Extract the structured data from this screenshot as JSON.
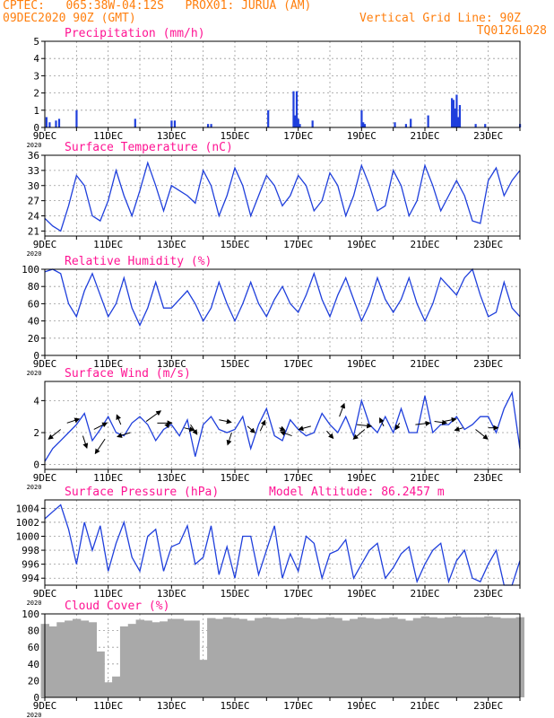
{
  "header": {
    "line1_left": "CPTEC:   065:38W-04:12S   PROX01: JURUA (AM)",
    "line2_left": "09DEC2020 90Z (GMT)",
    "line2_right": "Vertical Grid Line: 90Z",
    "line3_right": "TQ0126L028"
  },
  "colors": {
    "header": "#ff7f0e",
    "panel_title": "#ff1493",
    "series": "#1f3fdc",
    "cloud": "#a9a9a9",
    "arrows": "#000000",
    "grid": "#9a9a9a"
  },
  "x_axis": {
    "tick_labels": [
      "9DEC",
      "11DEC",
      "13DEC",
      "15DEC",
      "17DEC",
      "19DEC",
      "21DEC",
      "23DEC"
    ],
    "sub_label": "2020",
    "day_range": [
      9,
      24
    ]
  },
  "chart_data": [
    {
      "type": "bar",
      "title": "Precipitation (mm/h)",
      "ylim": [
        0,
        5
      ],
      "yticks": [
        0,
        1,
        2,
        3,
        4,
        5
      ],
      "x": [
        9.05,
        9.15,
        9.35,
        9.45,
        10.0,
        11.85,
        13.0,
        13.1,
        14.15,
        14.25,
        16.05,
        16.85,
        16.9,
        16.95,
        17.0,
        17.05,
        17.45,
        19.0,
        19.05,
        19.1,
        20.05,
        20.4,
        20.55,
        21.1,
        21.85,
        21.9,
        21.95,
        22.0,
        22.05,
        22.1,
        22.6,
        22.9,
        24.0
      ],
      "values": [
        0.6,
        0.3,
        0.4,
        0.5,
        1.0,
        0.5,
        0.4,
        0.4,
        0.2,
        0.2,
        1.0,
        2.1,
        0.7,
        2.1,
        0.5,
        0.2,
        0.4,
        1.0,
        0.3,
        0.2,
        0.3,
        0.2,
        0.5,
        0.7,
        1.7,
        1.6,
        1.1,
        1.9,
        0.6,
        1.3,
        0.2,
        0.2,
        0.2
      ]
    },
    {
      "type": "line",
      "title": "Surface Temperature (nC)",
      "ylim": [
        20,
        36
      ],
      "yticks": [
        21,
        24,
        27,
        30,
        33,
        36
      ],
      "x": [
        9.0,
        9.25,
        9.5,
        9.75,
        10.0,
        10.25,
        10.5,
        10.75,
        11.0,
        11.25,
        11.5,
        11.75,
        12.0,
        12.25,
        12.5,
        12.75,
        13.0,
        13.25,
        13.5,
        13.75,
        14.0,
        14.25,
        14.5,
        14.75,
        15.0,
        15.25,
        15.5,
        15.75,
        16.0,
        16.25,
        16.5,
        16.75,
        17.0,
        17.25,
        17.5,
        17.75,
        18.0,
        18.25,
        18.5,
        18.75,
        19.0,
        19.25,
        19.5,
        19.75,
        20.0,
        20.25,
        20.5,
        20.75,
        21.0,
        21.25,
        21.5,
        21.75,
        22.0,
        22.25,
        22.5,
        22.75,
        23.0,
        23.25,
        23.5,
        23.75,
        24.0
      ],
      "values": [
        23.5,
        22.0,
        21.0,
        26.0,
        32.0,
        30.0,
        24.0,
        23.0,
        27.0,
        33.0,
        28.0,
        24.0,
        29.0,
        34.5,
        30.0,
        25.0,
        30.0,
        29.0,
        28.0,
        26.5,
        33.0,
        30.0,
        24.0,
        28.0,
        33.5,
        30.0,
        24.0,
        28.0,
        32.0,
        30.0,
        26.0,
        28.0,
        32.0,
        30.0,
        25.0,
        27.0,
        32.5,
        30.0,
        24.0,
        28.0,
        34.0,
        30.0,
        25.0,
        26.0,
        33.0,
        30.0,
        24.0,
        27.0,
        34.0,
        30.0,
        25.0,
        28.0,
        31.0,
        28.0,
        23.0,
        22.5,
        31.0,
        33.5,
        28.0,
        31.0,
        33.0
      ]
    },
    {
      "type": "line",
      "title": "Relative Humidity (%)",
      "ylim": [
        0,
        100
      ],
      "yticks": [
        0,
        20,
        40,
        60,
        80,
        100
      ],
      "x": [
        9.0,
        9.25,
        9.5,
        9.75,
        10.0,
        10.25,
        10.5,
        10.75,
        11.0,
        11.25,
        11.5,
        11.75,
        12.0,
        12.25,
        12.5,
        12.75,
        13.0,
        13.25,
        13.5,
        13.75,
        14.0,
        14.25,
        14.5,
        14.75,
        15.0,
        15.25,
        15.5,
        15.75,
        16.0,
        16.25,
        16.5,
        16.75,
        17.0,
        17.25,
        17.5,
        17.75,
        18.0,
        18.25,
        18.5,
        18.75,
        19.0,
        19.25,
        19.5,
        19.75,
        20.0,
        20.25,
        20.5,
        20.75,
        21.0,
        21.25,
        21.5,
        21.75,
        22.0,
        22.25,
        22.5,
        22.75,
        23.0,
        23.25,
        23.5,
        23.75,
        24.0
      ],
      "values": [
        97,
        100,
        95,
        60,
        45,
        75,
        95,
        70,
        45,
        60,
        90,
        55,
        35,
        55,
        85,
        55,
        55,
        65,
        75,
        60,
        40,
        55,
        85,
        60,
        40,
        60,
        85,
        60,
        45,
        65,
        80,
        60,
        50,
        70,
        95,
        65,
        45,
        70,
        90,
        65,
        40,
        60,
        90,
        65,
        50,
        65,
        90,
        60,
        40,
        60,
        90,
        80,
        70,
        90,
        100,
        70,
        45,
        50,
        85,
        55,
        45
      ]
    },
    {
      "type": "line",
      "title": "Surface Wind (m/s)",
      "ylim": [
        -0.3,
        5.2
      ],
      "yticks": [
        0,
        2,
        4
      ],
      "x": [
        9.0,
        9.25,
        9.5,
        9.75,
        10.0,
        10.25,
        10.5,
        10.75,
        11.0,
        11.25,
        11.5,
        11.75,
        12.0,
        12.25,
        12.5,
        12.75,
        13.0,
        13.25,
        13.5,
        13.75,
        14.0,
        14.25,
        14.5,
        14.75,
        15.0,
        15.25,
        15.5,
        15.75,
        16.0,
        16.25,
        16.5,
        16.75,
        17.0,
        17.25,
        17.5,
        17.75,
        18.0,
        18.25,
        18.5,
        18.75,
        19.0,
        19.25,
        19.5,
        19.75,
        20.0,
        20.25,
        20.5,
        20.75,
        21.0,
        21.25,
        21.5,
        21.75,
        22.0,
        22.25,
        22.5,
        22.75,
        23.0,
        23.25,
        23.5,
        23.75,
        24.0
      ],
      "values": [
        0.2,
        1.0,
        1.5,
        2.0,
        2.5,
        3.2,
        1.5,
        2.2,
        3.0,
        2.0,
        1.8,
        2.6,
        3.0,
        2.5,
        1.5,
        2.2,
        2.5,
        1.8,
        2.8,
        0.5,
        2.5,
        3.0,
        2.2,
        2.0,
        2.2,
        3.0,
        1.0,
        2.5,
        3.5,
        1.8,
        1.5,
        2.8,
        2.2,
        1.8,
        2.0,
        3.2,
        2.5,
        2.0,
        3.0,
        1.8,
        4.0,
        2.5,
        2.0,
        3.0,
        2.0,
        3.5,
        2.0,
        2.0,
        4.3,
        2.0,
        2.5,
        2.5,
        3.0,
        2.2,
        2.5,
        3.0,
        3.0,
        2.0,
        3.5,
        4.5,
        1.0
      ]
    },
    {
      "type": "line",
      "title": "Surface Pressure (hPa)",
      "annotation": "Model Altitude: 86.2457 m",
      "ylim": [
        993,
        1005.2
      ],
      "yticks": [
        994,
        996,
        998,
        1000,
        1002,
        1004
      ],
      "x": [
        9.0,
        9.25,
        9.5,
        9.75,
        10.0,
        10.25,
        10.5,
        10.75,
        11.0,
        11.25,
        11.5,
        11.75,
        12.0,
        12.25,
        12.5,
        12.75,
        13.0,
        13.25,
        13.5,
        13.75,
        14.0,
        14.25,
        14.5,
        14.75,
        15.0,
        15.25,
        15.5,
        15.75,
        16.0,
        16.25,
        16.5,
        16.75,
        17.0,
        17.25,
        17.5,
        17.75,
        18.0,
        18.25,
        18.5,
        18.75,
        19.0,
        19.25,
        19.5,
        19.75,
        20.0,
        20.25,
        20.5,
        20.75,
        21.0,
        21.25,
        21.5,
        21.75,
        22.0,
        22.25,
        22.5,
        22.75,
        23.0,
        23.25,
        23.5,
        23.75,
        24.0
      ],
      "values": [
        1002.5,
        1003.5,
        1004.5,
        1001.0,
        996.0,
        1002.0,
        998.0,
        1001.5,
        995.0,
        999.0,
        1002.0,
        997.0,
        995.0,
        1000.0,
        1001.0,
        995.0,
        998.5,
        999.0,
        1001.5,
        996.0,
        997.0,
        1001.5,
        994.5,
        998.5,
        994.0,
        1000.0,
        1000.0,
        994.5,
        998.0,
        1001.5,
        994.0,
        997.5,
        995.0,
        1000.0,
        999.0,
        994.0,
        997.5,
        998.0,
        999.5,
        994.0,
        996.0,
        998.0,
        999.0,
        994.0,
        995.5,
        997.5,
        998.5,
        993.5,
        996.0,
        998.0,
        999.0,
        993.5,
        996.5,
        998.0,
        994.0,
        993.5,
        996.0,
        998.0,
        992.5,
        992.0,
        996.5
      ]
    },
    {
      "type": "area",
      "title": "Cloud Cover (%)",
      "ylim": [
        0,
        100
      ],
      "yticks": [
        0,
        20,
        40,
        60,
        80,
        100
      ],
      "x": [
        9.0,
        9.25,
        9.5,
        9.75,
        10.0,
        10.25,
        10.5,
        10.75,
        11.0,
        11.25,
        11.5,
        11.75,
        12.0,
        12.25,
        12.5,
        12.75,
        13.0,
        13.25,
        13.5,
        13.75,
        14.0,
        14.25,
        14.5,
        14.75,
        15.0,
        15.25,
        15.5,
        15.75,
        16.0,
        16.25,
        16.5,
        16.75,
        17.0,
        17.25,
        17.5,
        17.75,
        18.0,
        18.25,
        18.5,
        18.75,
        19.0,
        19.25,
        19.5,
        19.75,
        20.0,
        20.25,
        20.5,
        20.75,
        21.0,
        21.25,
        21.5,
        21.75,
        22.0,
        22.25,
        22.5,
        22.75,
        23.0,
        23.25,
        23.5,
        23.75,
        24.0
      ],
      "values": [
        88,
        85,
        90,
        92,
        94,
        92,
        90,
        55,
        18,
        25,
        85,
        88,
        93,
        92,
        90,
        91,
        94,
        94,
        92,
        92,
        45,
        95,
        94,
        96,
        95,
        94,
        92,
        95,
        96,
        95,
        94,
        95,
        96,
        95,
        94,
        95,
        96,
        95,
        92,
        94,
        96,
        95,
        94,
        95,
        96,
        94,
        92,
        95,
        97,
        96,
        95,
        96,
        97,
        96,
        96,
        96,
        97,
        96,
        95,
        95,
        96
      ]
    },
    {
      "type": "vector",
      "title": "Surface Wind (m/s)",
      "x": [
        9.5,
        9.7,
        10.2,
        10.55,
        10.9,
        11.4,
        11.7,
        12.2,
        12.55,
        12.85,
        13.4,
        13.6,
        14.5,
        14.9,
        15.4,
        15.8,
        16.4,
        16.8,
        17.4,
        17.9,
        18.3,
        18.85,
        19.1,
        19.7,
        20.2,
        20.7,
        21.3,
        21.6,
        22.2,
        22.6,
        23.0
      ],
      "y": [
        2.2,
        2.6,
        1.8,
        2.2,
        1.6,
        2.5,
        2.0,
        2.7,
        2.6,
        2.4,
        2.3,
        2.5,
        2.8,
        2.0,
        2.4,
        2.1,
        2.3,
        1.8,
        2.4,
        2.1,
        3.0,
        2.5,
        2.2,
        2.4,
        2.6,
        2.5,
        2.7,
        2.7,
        2.3,
        2.2,
        2.3
      ],
      "u": [
        -1.5,
        1.5,
        0.5,
        1.6,
        -1.2,
        -0.5,
        -1.6,
        1.8,
        1.8,
        0.3,
        1.2,
        0.8,
        1.5,
        -0.5,
        0.9,
        0.6,
        0.7,
        -1.4,
        -1.5,
        0.8,
        0.6,
        1.8,
        -1.4,
        -0.5,
        -0.5,
        1.8,
        1.5,
        1.5,
        -1.0,
        1.5,
        1.2
      ],
      "v": [
        -1.2,
        0.5,
        -1.5,
        0.8,
        -1.8,
        1.2,
        -0.5,
        1.3,
        0.0,
        0.4,
        -0.3,
        -1.2,
        -0.3,
        -1.5,
        -0.8,
        1.3,
        -0.3,
        0.5,
        -0.4,
        -0.9,
        1.6,
        -0.2,
        -1.2,
        1.0,
        -0.8,
        0.2,
        -0.2,
        0.3,
        -0.3,
        -1.2,
        0.0
      ]
    }
  ]
}
